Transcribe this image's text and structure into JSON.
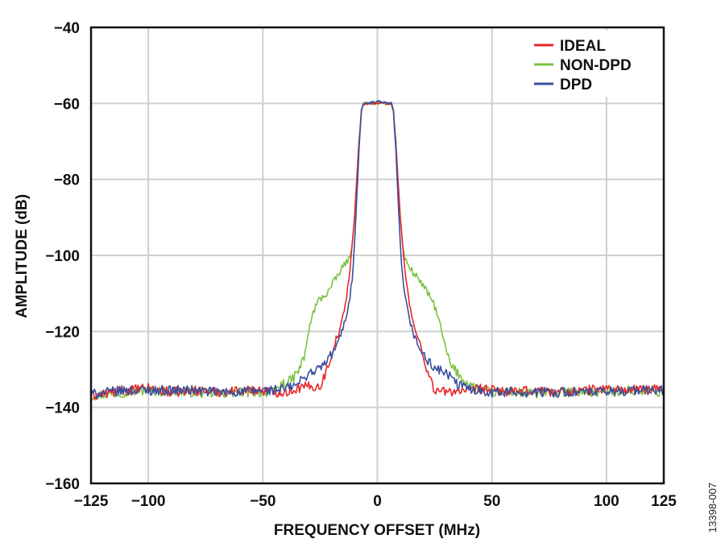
{
  "figure_id": "13398-007",
  "chart_data": {
    "type": "line",
    "title": "",
    "xlabel": "FREQUENCY OFFSET (MHz)",
    "ylabel": "AMPLITUDE (dB)",
    "xlim": [
      -125,
      125
    ],
    "ylim": [
      -160,
      -40
    ],
    "xticks": [
      -125,
      -100,
      -50,
      0,
      50,
      100,
      125
    ],
    "xtick_labels": [
      "−125",
      "−100",
      "−50",
      "0",
      "50",
      "100",
      "125"
    ],
    "yticks": [
      -40,
      -60,
      -80,
      -100,
      -120,
      -140,
      -160
    ],
    "ytick_labels": [
      "−40",
      "−60",
      "−80",
      "−100",
      "−120",
      "−140",
      "−160"
    ],
    "grid": true,
    "legend_position": "top-right",
    "colors": {
      "IDEAL": "#e8262a",
      "NON-DPD": "#7cc243",
      "DPD": "#3a4ea0"
    },
    "series": [
      {
        "name": "IDEAL",
        "x": [
          -125,
          -110,
          -100,
          -90,
          -80,
          -70,
          -60,
          -50,
          -45,
          -40,
          -35,
          -30,
          -25,
          -22,
          -20,
          -18,
          -16,
          -14,
          -12,
          -11,
          -10,
          -9,
          -8,
          -7,
          -6,
          -4,
          0,
          4,
          6,
          7,
          8,
          9,
          10,
          11,
          12,
          14,
          16,
          18,
          20,
          22,
          25,
          30,
          35,
          40,
          45,
          50,
          60,
          70,
          80,
          90,
          100,
          110,
          125
        ],
        "y": [
          -137,
          -135.5,
          -135,
          -136,
          -135.5,
          -136,
          -135.5,
          -135.5,
          -136,
          -136,
          -135,
          -134.5,
          -134.5,
          -130,
          -126,
          -122,
          -119,
          -113,
          -104,
          -97,
          -90,
          -80,
          -70,
          -62,
          -60,
          -60,
          -60,
          -60,
          -60,
          -62,
          -70,
          -80,
          -90,
          -97,
          -104,
          -113,
          -119,
          -122,
          -126,
          -131,
          -135.5,
          -136,
          -135.5,
          -136,
          -135,
          -135.5,
          -136,
          -135.5,
          -136,
          -135.5,
          -135,
          -135.5,
          -135
        ]
      },
      {
        "name": "NON-DPD",
        "x": [
          -125,
          -110,
          -100,
          -90,
          -80,
          -70,
          -60,
          -50,
          -45,
          -42,
          -38,
          -35,
          -32,
          -30,
          -28,
          -26,
          -24,
          -22,
          -20,
          -18,
          -16,
          -14,
          -12,
          -11,
          -10,
          -9,
          -8,
          -7,
          -6,
          -4,
          0,
          4,
          6,
          7,
          8,
          9,
          10,
          11,
          12,
          14,
          16,
          18,
          20,
          22,
          24,
          26,
          28,
          30,
          32,
          35,
          38,
          42,
          45,
          50,
          60,
          70,
          80,
          90,
          100,
          110,
          125
        ],
        "y": [
          -137,
          -136,
          -135.5,
          -136,
          -136,
          -136.5,
          -136,
          -136,
          -136,
          -134,
          -133,
          -131,
          -127,
          -120,
          -115,
          -112,
          -111,
          -110,
          -108,
          -106,
          -104,
          -102,
          -101,
          -97,
          -90,
          -80,
          -70,
          -62,
          -60,
          -60,
          -60,
          -60,
          -60,
          -62,
          -70,
          -80,
          -90,
          -97,
          -101,
          -103,
          -105,
          -106,
          -108,
          -110,
          -112,
          -115,
          -120,
          -125,
          -129,
          -131,
          -133,
          -134.5,
          -135.5,
          -136,
          -136,
          -136.5,
          -136,
          -136,
          -136,
          -135.5,
          -136
        ]
      },
      {
        "name": "DPD",
        "x": [
          -125,
          -110,
          -100,
          -90,
          -80,
          -70,
          -60,
          -50,
          -45,
          -40,
          -35,
          -30,
          -26,
          -22,
          -20,
          -18,
          -16,
          -14,
          -12,
          -11,
          -10,
          -9,
          -8,
          -7,
          -6,
          -4,
          0,
          4,
          6,
          7,
          8,
          9,
          10,
          11,
          12,
          14,
          16,
          18,
          20,
          22,
          26,
          30,
          35,
          40,
          45,
          50,
          60,
          70,
          80,
          90,
          100,
          110,
          125
        ],
        "y": [
          -136.5,
          -135.5,
          -135.5,
          -135.5,
          -135.5,
          -136,
          -136,
          -135.5,
          -135.5,
          -135,
          -134,
          -131,
          -130,
          -128,
          -126,
          -124,
          -121,
          -117,
          -111,
          -106,
          -97,
          -85,
          -72,
          -62,
          -60,
          -60,
          -59.5,
          -60,
          -60,
          -62,
          -72,
          -85,
          -97,
          -106,
          -111,
          -117,
          -121,
          -124,
          -126,
          -128,
          -130,
          -131,
          -134,
          -135,
          -135.5,
          -136,
          -136,
          -136,
          -136,
          -136,
          -136,
          -135.5,
          -135.5
        ]
      }
    ]
  }
}
